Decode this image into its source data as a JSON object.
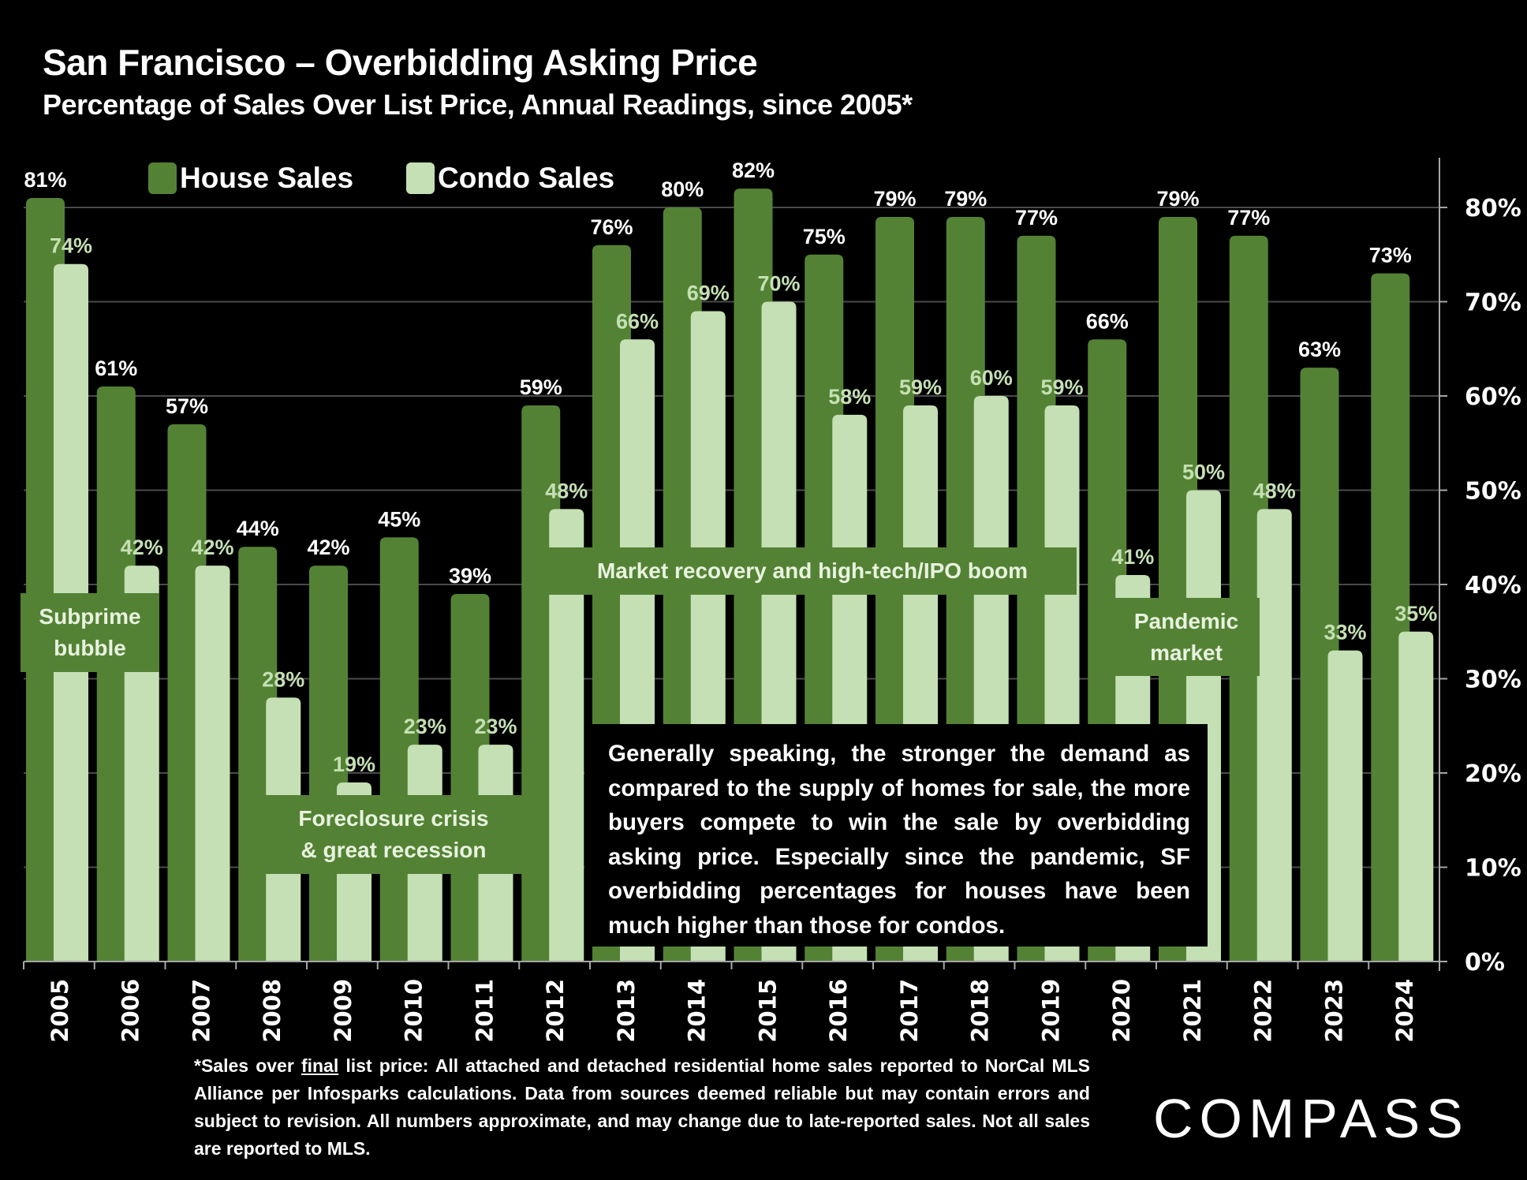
{
  "header": {
    "title": "San Francisco – Overbidding Asking Price",
    "subtitle": "Percentage of Sales Over List Price, Annual Readings, since 2005*"
  },
  "colors": {
    "house": "#548235",
    "condo": "#c5e0b4",
    "condo_label": "#c5e0b4",
    "house_label": "#ffffff",
    "grid": "#4a4a4a",
    "axis": "#a6a6a6"
  },
  "chart_data": {
    "type": "bar",
    "title": "San Francisco – Overbidding Asking Price",
    "subtitle": "Percentage of Sales Over List Price, Annual Readings, since 2005*",
    "xlabel": "",
    "ylabel": "",
    "categories": [
      "2005",
      "2006",
      "2007",
      "2008",
      "2009",
      "2010",
      "2011",
      "2012",
      "2013",
      "2014",
      "2015",
      "2016",
      "2017",
      "2018",
      "2019",
      "2020",
      "2021",
      "2022",
      "2023",
      "2024"
    ],
    "series": [
      {
        "name": "House Sales",
        "values": [
          81,
          61,
          57,
          44,
          42,
          45,
          39,
          59,
          76,
          80,
          82,
          75,
          79,
          79,
          77,
          66,
          79,
          77,
          63,
          73
        ]
      },
      {
        "name": "Condo Sales",
        "values": [
          74,
          42,
          42,
          28,
          19,
          23,
          23,
          48,
          66,
          69,
          70,
          58,
          59,
          60,
          59,
          41,
          50,
          48,
          33,
          35
        ]
      }
    ],
    "data_labels": {
      "House Sales": [
        "81%",
        "61%",
        "57%",
        "44%",
        "42%",
        "45%",
        "39%",
        "59%",
        "76%",
        "80%",
        "82%",
        "75%",
        "79%",
        "79%",
        "77%",
        "66%",
        "79%",
        "77%",
        "63%",
        "73%"
      ],
      "Condo Sales": [
        "74%",
        "42%",
        "42%",
        "28%",
        "19%",
        "23%",
        "23%",
        "48%",
        "66%",
        "69%",
        "70%",
        "58%",
        "59%",
        "60%",
        "59%",
        "41%",
        "50%",
        "48%",
        "33%",
        "35%"
      ]
    },
    "ylim": [
      0,
      85
    ],
    "yticks": [
      0,
      10,
      20,
      30,
      40,
      50,
      60,
      70,
      80
    ],
    "ytick_labels": [
      "0%",
      "10%",
      "20%",
      "30%",
      "40%",
      "50%",
      "60%",
      "70%",
      "80%"
    ],
    "y_axis_side": "right",
    "grid": true,
    "legend": {
      "position": "top-left",
      "entries": [
        "House Sales",
        "Condo Sales"
      ]
    },
    "annotations": [
      {
        "text": "Subprime\nbubble",
        "years": "2005-2006"
      },
      {
        "text": "Foreclosure crisis\n& great recession",
        "years": "2008-2011"
      },
      {
        "text": "Market recovery and high-tech/IPO boom",
        "years": "2012-2019"
      },
      {
        "text": "Pandemic\nmarket",
        "years": "2021"
      }
    ]
  },
  "note": "Generally speaking, the stronger the demand as compared to the supply of homes for sale, the more buyers compete to win the sale by overbidding asking price. Especially since the pandemic, SF overbidding percentages for houses have been much higher than those for condos.",
  "footer": {
    "prefix": "*Sales over ",
    "underlined": "final",
    "rest": " list price: All attached and detached residential home sales reported to NorCal MLS Alliance per Infosparks calculations. Data from sources deemed reliable but may contain errors and subject to revision. All numbers approximate, and may change due to late-reported sales. Not all sales are reported to MLS."
  },
  "logo": "COMPASS"
}
